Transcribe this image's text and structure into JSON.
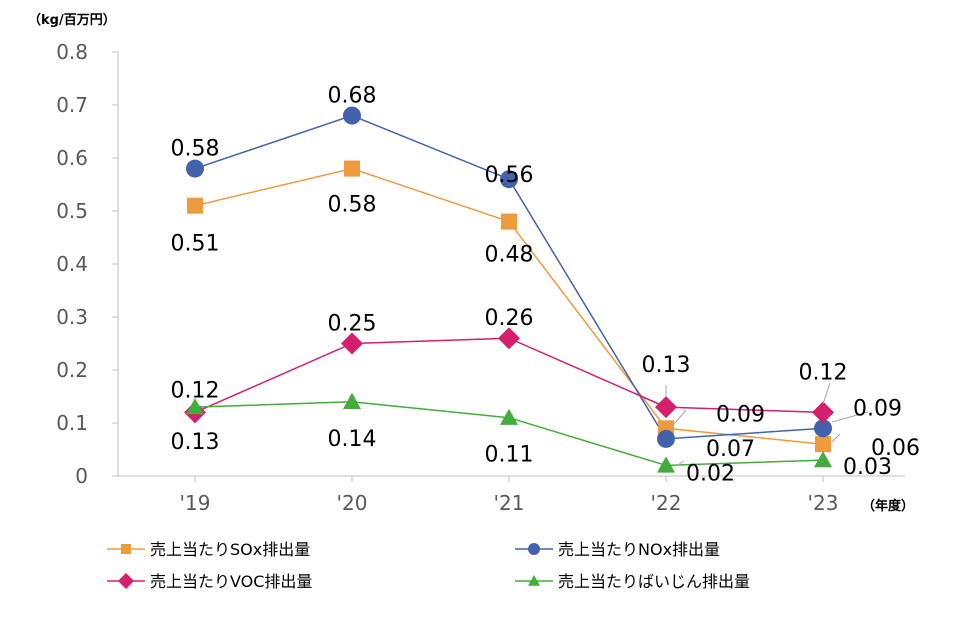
{
  "chart_data": {
    "type": "line",
    "y_unit_label": "（kg/百万円）",
    "x_unit_label": "（年度）",
    "categories": [
      "'19",
      "'20",
      "'21",
      "'22",
      "'23"
    ],
    "ylim": [
      0,
      0.8
    ],
    "yticks": [
      "0",
      "0.1",
      "0.2",
      "0.3",
      "0.4",
      "0.5",
      "0.6",
      "0.7",
      "0.8"
    ],
    "grid": false,
    "legend_position": "bottom",
    "series": [
      {
        "name": "売上当たりSOx排出量",
        "values": [
          0.51,
          0.58,
          0.48,
          0.09,
          0.06
        ],
        "labels": [
          "0.51",
          "0.58",
          "0.48",
          "0.09",
          "0.06"
        ],
        "color": "#ED9B3C",
        "marker": "square"
      },
      {
        "name": "売上当たりNOx排出量",
        "values": [
          0.58,
          0.68,
          0.56,
          0.07,
          0.09
        ],
        "labels": [
          "0.58",
          "0.68",
          "0.56",
          "0.07",
          "0.09"
        ],
        "color": "#4462AC",
        "marker": "circle"
      },
      {
        "name": "売上当たりVOC排出量",
        "values": [
          0.12,
          0.25,
          0.26,
          0.13,
          0.12
        ],
        "labels": [
          "0.12",
          "0.25",
          "0.26",
          "0.13",
          "0.12"
        ],
        "color": "#D51F6C",
        "marker": "diamond"
      },
      {
        "name": "売上当たりばいじん排出量",
        "values": [
          0.13,
          0.14,
          0.11,
          0.02,
          0.03
        ],
        "labels": [
          "0.13",
          "0.14",
          "0.11",
          "0.02",
          "0.03"
        ],
        "color": "#44AC3C",
        "marker": "triangle"
      }
    ]
  }
}
